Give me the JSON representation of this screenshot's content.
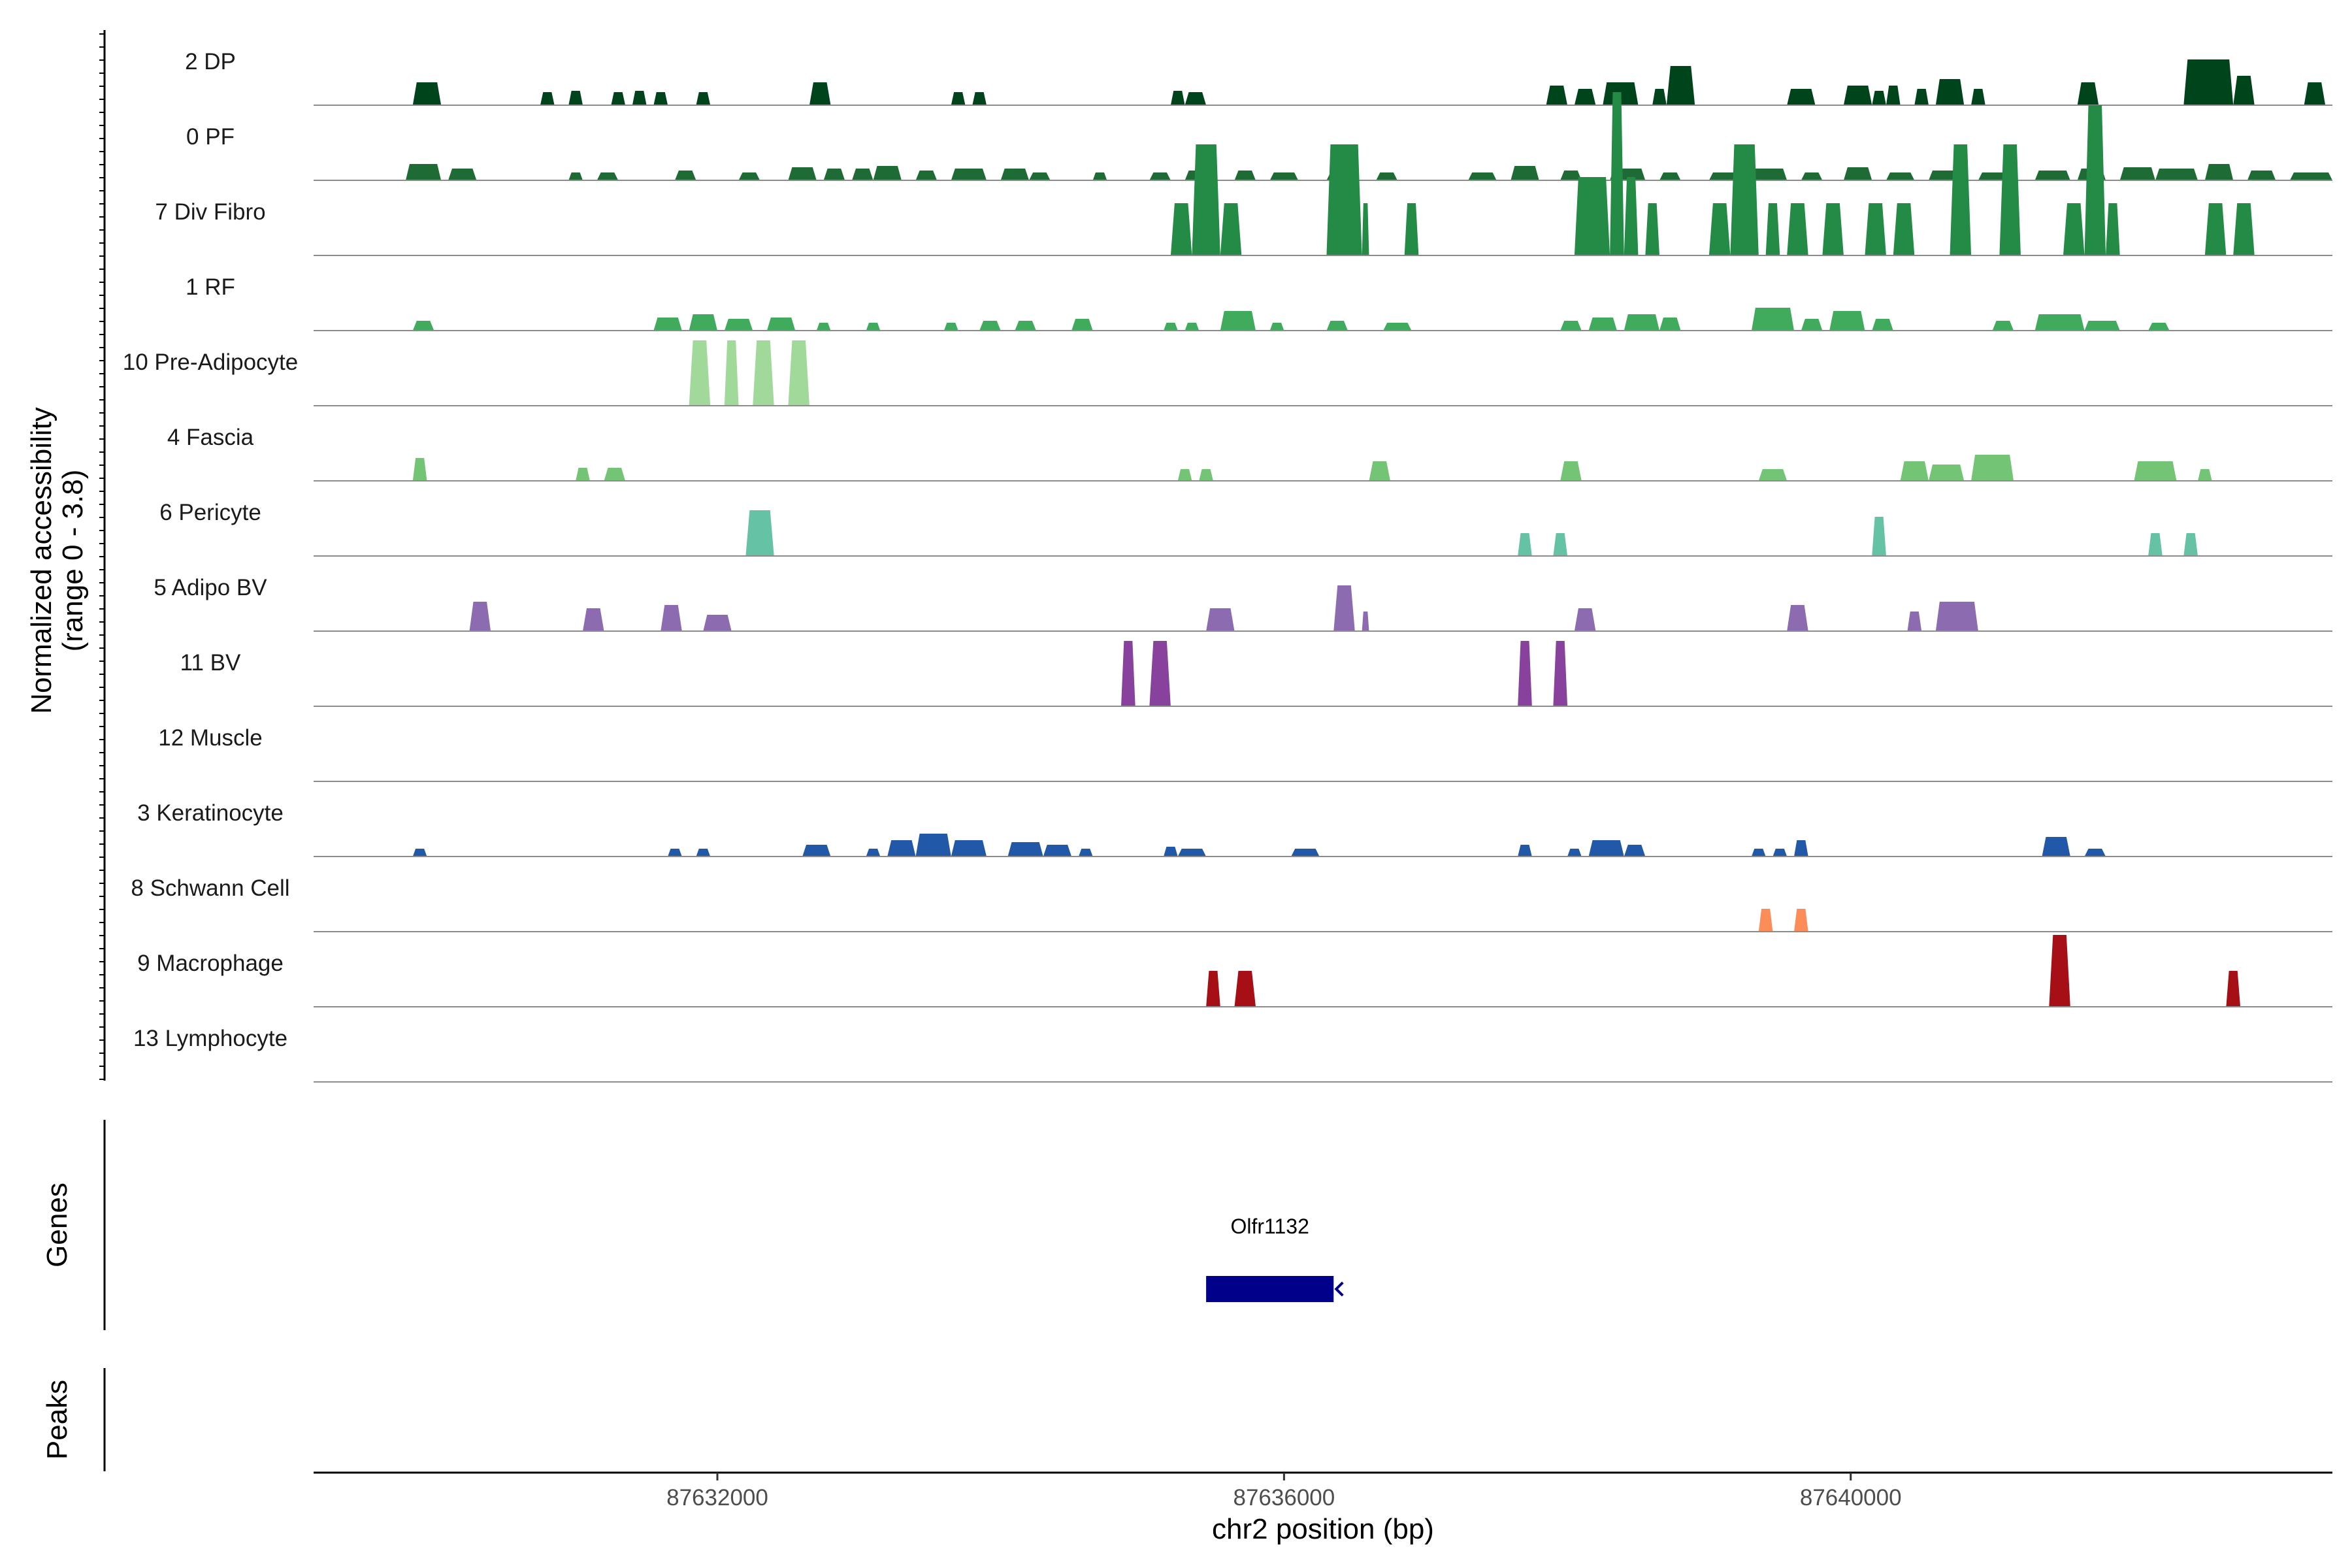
{
  "chart_data": {
    "type": "area",
    "ylabel": "Normalized accessibility",
    "ylabel_range": "(range 0 - 3.8)",
    "xlabel": "chr2 position (bp)",
    "y_range": [
      0,
      3.8
    ],
    "x_range": [
      87629150,
      87643400
    ],
    "x_ticks": [
      87632000,
      87636000,
      87640000
    ],
    "x_tick_labels": [
      "87632000",
      "87636000",
      "87640000"
    ],
    "genes_label": "Genes",
    "peaks_label": "Peaks",
    "genes": [
      {
        "name": "Olfr1132",
        "start": 87635450,
        "end": 87636350,
        "strand": "-",
        "color": "#00008B"
      }
    ],
    "tracks": [
      {
        "name": "2 DP",
        "color": "#00441B",
        "peaks": [
          [
            87629850,
            87630050,
            0.35
          ],
          [
            87630750,
            87630850,
            0.2
          ],
          [
            87630950,
            87631050,
            0.22
          ],
          [
            87631250,
            87631350,
            0.2
          ],
          [
            87631400,
            87631500,
            0.22
          ],
          [
            87631550,
            87631650,
            0.2
          ],
          [
            87631850,
            87631950,
            0.2
          ],
          [
            87632650,
            87632800,
            0.35
          ],
          [
            87633650,
            87633750,
            0.2
          ],
          [
            87633800,
            87633900,
            0.2
          ],
          [
            87635200,
            87635300,
            0.22
          ],
          [
            87635300,
            87635450,
            0.2
          ],
          [
            87637850,
            87638000,
            0.3
          ],
          [
            87638050,
            87638200,
            0.25
          ],
          [
            87638250,
            87638500,
            0.35
          ],
          [
            87638600,
            87638700,
            0.25
          ],
          [
            87638700,
            87638900,
            0.6
          ],
          [
            87639550,
            87639750,
            0.25
          ],
          [
            87639950,
            87640150,
            0.3
          ],
          [
            87640150,
            87640250,
            0.22
          ],
          [
            87640250,
            87640350,
            0.3
          ],
          [
            87640450,
            87640550,
            0.25
          ],
          [
            87640600,
            87640800,
            0.4
          ],
          [
            87640850,
            87640950,
            0.25
          ],
          [
            87641600,
            87641750,
            0.35
          ],
          [
            87642350,
            87642700,
            0.7
          ],
          [
            87642700,
            87642850,
            0.45
          ],
          [
            87643200,
            87643350,
            0.35
          ]
        ]
      },
      {
        "name": "0 PF",
        "color": "#1E6B35",
        "peaks": [
          [
            87629800,
            87630050,
            0.25
          ],
          [
            87630100,
            87630300,
            0.18
          ],
          [
            87630950,
            87631050,
            0.12
          ],
          [
            87631150,
            87631300,
            0.12
          ],
          [
            87631700,
            87631850,
            0.15
          ],
          [
            87632150,
            87632300,
            0.12
          ],
          [
            87632500,
            87632700,
            0.2
          ],
          [
            87632750,
            87632900,
            0.18
          ],
          [
            87632950,
            87633100,
            0.18
          ],
          [
            87633100,
            87633300,
            0.22
          ],
          [
            87633400,
            87633550,
            0.15
          ],
          [
            87633650,
            87633900,
            0.18
          ],
          [
            87634000,
            87634200,
            0.18
          ],
          [
            87634200,
            87634350,
            0.12
          ],
          [
            87634650,
            87634750,
            0.12
          ],
          [
            87635050,
            87635200,
            0.12
          ],
          [
            87635300,
            87635500,
            0.15
          ],
          [
            87635650,
            87635800,
            0.15
          ],
          [
            87635900,
            87636100,
            0.12
          ],
          [
            87636300,
            87636500,
            0.12
          ],
          [
            87636650,
            87636800,
            0.12
          ],
          [
            87637300,
            87637500,
            0.12
          ],
          [
            87637600,
            87637800,
            0.22
          ],
          [
            87637950,
            87638100,
            0.15
          ],
          [
            87638300,
            87638550,
            0.18
          ],
          [
            87638650,
            87638800,
            0.12
          ],
          [
            87639000,
            87639200,
            0.12
          ],
          [
            87639300,
            87639550,
            0.18
          ],
          [
            87639650,
            87639800,
            0.12
          ],
          [
            87639950,
            87640150,
            0.2
          ],
          [
            87640250,
            87640450,
            0.12
          ],
          [
            87640550,
            87640800,
            0.15
          ],
          [
            87640900,
            87641100,
            0.12
          ],
          [
            87641300,
            87641550,
            0.15
          ],
          [
            87641600,
            87641800,
            0.18
          ],
          [
            87641900,
            87642150,
            0.2
          ],
          [
            87642150,
            87642450,
            0.18
          ],
          [
            87642500,
            87642700,
            0.25
          ],
          [
            87642800,
            87643000,
            0.15
          ],
          [
            87643100,
            87643400,
            0.12
          ]
        ]
      },
      {
        "name": "7 Div Fibro",
        "color": "#238B45",
        "peaks": [
          [
            87635200,
            87635350,
            0.8
          ],
          [
            87635350,
            87635550,
            1.7
          ],
          [
            87635550,
            87635700,
            0.8
          ],
          [
            87636300,
            87636550,
            1.7
          ],
          [
            87636550,
            87636600,
            0.8
          ],
          [
            87636850,
            87636950,
            0.8
          ],
          [
            87638050,
            87638300,
            1.2
          ],
          [
            87638300,
            87638400,
            2.5
          ],
          [
            87638400,
            87638500,
            1.2
          ],
          [
            87638550,
            87638650,
            0.8
          ],
          [
            87639000,
            87639150,
            0.8
          ],
          [
            87639150,
            87639350,
            1.7
          ],
          [
            87639400,
            87639500,
            0.8
          ],
          [
            87639550,
            87639700,
            0.8
          ],
          [
            87639800,
            87639950,
            0.8
          ],
          [
            87640100,
            87640250,
            0.8
          ],
          [
            87640300,
            87640450,
            0.8
          ],
          [
            87640700,
            87640850,
            1.7
          ],
          [
            87641050,
            87641200,
            1.7
          ],
          [
            87641500,
            87641650,
            0.8
          ],
          [
            87641650,
            87641800,
            2.3
          ],
          [
            87641800,
            87641900,
            0.8
          ],
          [
            87642500,
            87642650,
            0.8
          ],
          [
            87642700,
            87642850,
            0.8
          ]
        ]
      },
      {
        "name": "1 RF",
        "color": "#41AB5D",
        "peaks": [
          [
            87629850,
            87630000,
            0.15
          ],
          [
            87631550,
            87631750,
            0.2
          ],
          [
            87631800,
            87632000,
            0.25
          ],
          [
            87632050,
            87632250,
            0.18
          ],
          [
            87632350,
            87632550,
            0.2
          ],
          [
            87632700,
            87632800,
            0.12
          ],
          [
            87633050,
            87633150,
            0.12
          ],
          [
            87633600,
            87633700,
            0.12
          ],
          [
            87633850,
            87634000,
            0.15
          ],
          [
            87634100,
            87634250,
            0.15
          ],
          [
            87634500,
            87634650,
            0.18
          ],
          [
            87635150,
            87635250,
            0.12
          ],
          [
            87635300,
            87635400,
            0.12
          ],
          [
            87635550,
            87635800,
            0.3
          ],
          [
            87635900,
            87636000,
            0.12
          ],
          [
            87636300,
            87636450,
            0.15
          ],
          [
            87636700,
            87636900,
            0.12
          ],
          [
            87637950,
            87638100,
            0.15
          ],
          [
            87638150,
            87638350,
            0.2
          ],
          [
            87638400,
            87638650,
            0.25
          ],
          [
            87638650,
            87638800,
            0.2
          ],
          [
            87639300,
            87639600,
            0.35
          ],
          [
            87639650,
            87639800,
            0.18
          ],
          [
            87639850,
            87640100,
            0.3
          ],
          [
            87640150,
            87640300,
            0.18
          ],
          [
            87641000,
            87641150,
            0.15
          ],
          [
            87641300,
            87641650,
            0.25
          ],
          [
            87641650,
            87641900,
            0.15
          ],
          [
            87642100,
            87642250,
            0.12
          ]
        ]
      },
      {
        "name": "10 Pre-Adipocyte",
        "color": "#A1D99B",
        "peaks": [
          [
            87631800,
            87631950,
            1.0
          ],
          [
            87632050,
            87632150,
            1.0
          ],
          [
            87632250,
            87632400,
            1.0
          ],
          [
            87632500,
            87632650,
            1.0
          ]
        ]
      },
      {
        "name": "4 Fascia",
        "color": "#74C476",
        "peaks": [
          [
            87629850,
            87629950,
            0.35
          ],
          [
            87631000,
            87631100,
            0.2
          ],
          [
            87631200,
            87631350,
            0.2
          ],
          [
            87635250,
            87635350,
            0.18
          ],
          [
            87635400,
            87635500,
            0.18
          ],
          [
            87636600,
            87636750,
            0.3
          ],
          [
            87637950,
            87638100,
            0.3
          ],
          [
            87639350,
            87639550,
            0.18
          ],
          [
            87640350,
            87640550,
            0.3
          ],
          [
            87640550,
            87640800,
            0.25
          ],
          [
            87640850,
            87641150,
            0.4
          ],
          [
            87642000,
            87642300,
            0.3
          ],
          [
            87642450,
            87642550,
            0.18
          ]
        ]
      },
      {
        "name": "6 Pericyte",
        "color": "#66C2A4",
        "peaks": [
          [
            87632200,
            87632400,
            0.7
          ],
          [
            87637650,
            87637750,
            0.35
          ],
          [
            87637900,
            87638000,
            0.35
          ],
          [
            87640150,
            87640250,
            0.6
          ],
          [
            87642100,
            87642200,
            0.35
          ],
          [
            87642350,
            87642450,
            0.35
          ]
        ]
      },
      {
        "name": "5 Adipo BV",
        "color": "#8C6BB1",
        "peaks": [
          [
            87630250,
            87630400,
            0.45
          ],
          [
            87631050,
            87631200,
            0.35
          ],
          [
            87631600,
            87631750,
            0.4
          ],
          [
            87631900,
            87632100,
            0.25
          ],
          [
            87635450,
            87635650,
            0.35
          ],
          [
            87636350,
            87636500,
            0.7
          ],
          [
            87636550,
            87636600,
            0.3
          ],
          [
            87638050,
            87638200,
            0.35
          ],
          [
            87639550,
            87639700,
            0.4
          ],
          [
            87640400,
            87640500,
            0.3
          ],
          [
            87640600,
            87640900,
            0.45
          ]
        ]
      },
      {
        "name": "11 BV",
        "color": "#88419D",
        "peaks": [
          [
            87634850,
            87634950,
            1.0
          ],
          [
            87635050,
            87635200,
            1.0
          ],
          [
            87637650,
            87637750,
            1.0
          ],
          [
            87637900,
            87638000,
            1.0
          ]
        ]
      },
      {
        "name": "12 Muscle",
        "color": "#810F7C",
        "peaks": []
      },
      {
        "name": "3 Keratinocyte",
        "color": "#2158A8",
        "peaks": [
          [
            87629850,
            87629950,
            0.12
          ],
          [
            87631650,
            87631750,
            0.12
          ],
          [
            87631850,
            87631950,
            0.12
          ],
          [
            87632600,
            87632800,
            0.18
          ],
          [
            87633050,
            87633150,
            0.12
          ],
          [
            87633200,
            87633400,
            0.25
          ],
          [
            87633400,
            87633650,
            0.35
          ],
          [
            87633650,
            87633900,
            0.25
          ],
          [
            87634050,
            87634300,
            0.22
          ],
          [
            87634300,
            87634500,
            0.18
          ],
          [
            87634550,
            87634650,
            0.12
          ],
          [
            87635150,
            87635250,
            0.15
          ],
          [
            87635250,
            87635450,
            0.12
          ],
          [
            87636050,
            87636250,
            0.12
          ],
          [
            87637650,
            87637750,
            0.18
          ],
          [
            87638000,
            87638100,
            0.12
          ],
          [
            87638150,
            87638400,
            0.25
          ],
          [
            87638400,
            87638550,
            0.18
          ],
          [
            87639300,
            87639400,
            0.12
          ],
          [
            87639450,
            87639550,
            0.12
          ],
          [
            87639600,
            87639700,
            0.25
          ],
          [
            87641350,
            87641550,
            0.3
          ],
          [
            87641650,
            87641800,
            0.12
          ]
        ]
      },
      {
        "name": "8 Schwann Cell",
        "color": "#FC8D59",
        "peaks": [
          [
            87639350,
            87639450,
            0.35
          ],
          [
            87639600,
            87639700,
            0.35
          ]
        ]
      },
      {
        "name": "9 Macrophage",
        "color": "#A50F15",
        "peaks": [
          [
            87635450,
            87635550,
            0.55
          ],
          [
            87635650,
            87635800,
            0.55
          ],
          [
            87641400,
            87641550,
            1.1
          ],
          [
            87642650,
            87642750,
            0.55
          ]
        ]
      },
      {
        "name": "13 Lymphocyte",
        "color": "#BDBDBD",
        "peaks": []
      }
    ]
  }
}
